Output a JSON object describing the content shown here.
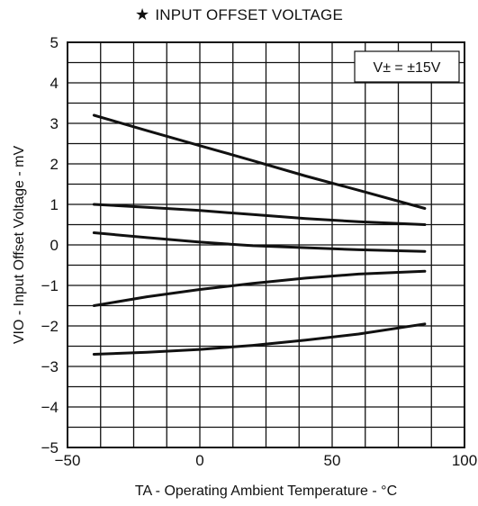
{
  "chart_data": {
    "type": "line",
    "title": "INPUT OFFSET VOLTAGE",
    "title_icon": "star-icon",
    "xlabel": "TA - Operating Ambient Temperature - °C",
    "ylabel": "VIO - Input Offset Voltage - mV",
    "xlim": [
      -50,
      100
    ],
    "ylim": [
      -5,
      5
    ],
    "x_ticks": [
      -50,
      0,
      50,
      100
    ],
    "y_ticks": [
      5,
      4,
      3,
      2,
      1,
      0,
      -1,
      -2,
      -3,
      -4,
      -5
    ],
    "x_tick_labels": [
      "−50",
      "0",
      "50",
      "100"
    ],
    "y_tick_labels": [
      "5",
      "4",
      "3",
      "2",
      "1",
      "0",
      "−1",
      "−2",
      "−3",
      "−4",
      "−5"
    ],
    "grid": true,
    "grid_x_step": 12.5,
    "grid_y_step": 0.5,
    "annotation": "V± = ±15V",
    "annotation_position": "top-right",
    "series": [
      {
        "x": [
          -40,
          -20,
          0,
          20,
          40,
          60,
          85
        ],
        "values": [
          3.2,
          2.82,
          2.45,
          2.08,
          1.7,
          1.35,
          0.9
        ]
      },
      {
        "x": [
          -40,
          -20,
          0,
          20,
          40,
          60,
          85
        ],
        "values": [
          1.0,
          0.93,
          0.85,
          0.75,
          0.65,
          0.57,
          0.5
        ]
      },
      {
        "x": [
          -40,
          -20,
          0,
          20,
          40,
          60,
          85
        ],
        "values": [
          0.3,
          0.18,
          0.07,
          -0.02,
          -0.07,
          -0.12,
          -0.16
        ]
      },
      {
        "x": [
          -40,
          -20,
          0,
          20,
          40,
          60,
          85
        ],
        "values": [
          -1.5,
          -1.28,
          -1.1,
          -0.95,
          -0.82,
          -0.72,
          -0.65
        ]
      },
      {
        "x": [
          -40,
          -20,
          0,
          20,
          40,
          60,
          85
        ],
        "values": [
          -2.7,
          -2.65,
          -2.58,
          -2.48,
          -2.35,
          -2.2,
          -1.95
        ]
      }
    ]
  }
}
